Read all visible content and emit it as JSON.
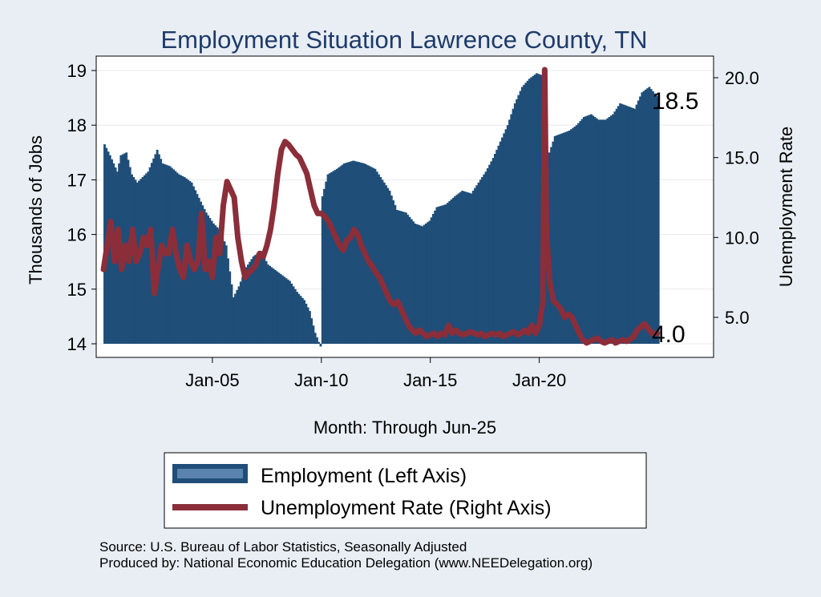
{
  "chart_data": {
    "type": "bar+line",
    "title": "Employment Situation Lawrence  County, TN",
    "xlabel": "Month: Through Jun-25",
    "ylabel_left": "Thousands of Jobs",
    "ylabel_right": "Unemployment Rate",
    "ylim_left": [
      14,
      19
    ],
    "ylim_right": [
      2.5,
      21
    ],
    "yticks_left": [
      "14",
      "15",
      "16",
      "17",
      "18",
      "19"
    ],
    "yticks_right": [
      "5.0",
      "10.0",
      "15.0",
      "20.0"
    ],
    "xticks": [
      "Jan-05",
      "Jan-10",
      "Jan-15",
      "Jan-20"
    ],
    "grid": true,
    "legend_position": "bottom",
    "series": [
      {
        "name": "Employment (Left Axis)",
        "kind": "bar",
        "axis": "left",
        "color": "#1f4e79",
        "points": [
          [
            "2000-01",
            17.65
          ],
          [
            "2000-04",
            17.45
          ],
          [
            "2000-06",
            17.3
          ],
          [
            "2000-08",
            17.15
          ],
          [
            "2000-10",
            17.45
          ],
          [
            "2001-01",
            17.5
          ],
          [
            "2001-04",
            17.1
          ],
          [
            "2001-07",
            16.95
          ],
          [
            "2001-10",
            17.05
          ],
          [
            "2002-01",
            17.15
          ],
          [
            "2002-06",
            17.55
          ],
          [
            "2002-09",
            17.3
          ],
          [
            "2003-01",
            17.25
          ],
          [
            "2003-06",
            17.1
          ],
          [
            "2003-09",
            17.05
          ],
          [
            "2004-01",
            16.95
          ],
          [
            "2004-06",
            16.6
          ],
          [
            "2004-09",
            16.4
          ],
          [
            "2005-01",
            16.2
          ],
          [
            "2005-04",
            16.1
          ],
          [
            "2005-08",
            15.8
          ],
          [
            "2005-12",
            14.85
          ],
          [
            "2006-03",
            15.05
          ],
          [
            "2006-07",
            15.4
          ],
          [
            "2006-11",
            15.6
          ],
          [
            "2007-03",
            15.7
          ],
          [
            "2007-07",
            15.45
          ],
          [
            "2007-11",
            15.35
          ],
          [
            "2008-03",
            15.25
          ],
          [
            "2008-07",
            15.15
          ],
          [
            "2008-11",
            14.95
          ],
          [
            "2009-03",
            14.8
          ],
          [
            "2009-06",
            14.6
          ],
          [
            "2009-09",
            14.2
          ],
          [
            "2009-12",
            13.95
          ],
          [
            "2010-01",
            16.7
          ],
          [
            "2010-04",
            17.1
          ],
          [
            "2010-09",
            17.2
          ],
          [
            "2011-01",
            17.3
          ],
          [
            "2011-06",
            17.35
          ],
          [
            "2011-12",
            17.3
          ],
          [
            "2012-06",
            17.2
          ],
          [
            "2012-10",
            17.0
          ],
          [
            "2013-02",
            16.8
          ],
          [
            "2013-06",
            16.45
          ],
          [
            "2013-11",
            16.4
          ],
          [
            "2014-04",
            16.2
          ],
          [
            "2014-08",
            16.15
          ],
          [
            "2014-12",
            16.25
          ],
          [
            "2015-04",
            16.5
          ],
          [
            "2015-09",
            16.55
          ],
          [
            "2016-02",
            16.7
          ],
          [
            "2016-06",
            16.8
          ],
          [
            "2016-11",
            16.75
          ],
          [
            "2017-03",
            16.95
          ],
          [
            "2017-07",
            17.15
          ],
          [
            "2017-11",
            17.4
          ],
          [
            "2018-03",
            17.7
          ],
          [
            "2018-07",
            18.0
          ],
          [
            "2018-11",
            18.4
          ],
          [
            "2019-03",
            18.7
          ],
          [
            "2019-07",
            18.85
          ],
          [
            "2019-11",
            18.95
          ],
          [
            "2020-03",
            18.9
          ],
          [
            "2020-05",
            17.4
          ],
          [
            "2020-09",
            17.8
          ],
          [
            "2021-01",
            17.85
          ],
          [
            "2021-05",
            17.9
          ],
          [
            "2021-09",
            18.0
          ],
          [
            "2022-01",
            18.15
          ],
          [
            "2022-05",
            18.2
          ],
          [
            "2022-09",
            18.1
          ],
          [
            "2023-01",
            18.1
          ],
          [
            "2023-05",
            18.2
          ],
          [
            "2023-09",
            18.4
          ],
          [
            "2024-01",
            18.35
          ],
          [
            "2024-05",
            18.3
          ],
          [
            "2024-09",
            18.6
          ],
          [
            "2025-01",
            18.7
          ],
          [
            "2025-06",
            18.5
          ]
        ]
      },
      {
        "name": "Unemployment Rate (Right Axis)",
        "kind": "line",
        "axis": "right",
        "color": "#8b2e3a",
        "points": [
          [
            "2000-01",
            8.0
          ],
          [
            "2000-03",
            9.5
          ],
          [
            "2000-05",
            11.0
          ],
          [
            "2000-07",
            8.5
          ],
          [
            "2000-09",
            10.5
          ],
          [
            "2000-11",
            8.0
          ],
          [
            "2001-01",
            9.5
          ],
          [
            "2001-03",
            8.5
          ],
          [
            "2001-05",
            10.5
          ],
          [
            "2001-07",
            8.5
          ],
          [
            "2001-09",
            9.0
          ],
          [
            "2001-11",
            10.0
          ],
          [
            "2002-01",
            9.5
          ],
          [
            "2002-03",
            10.5
          ],
          [
            "2002-05",
            6.5
          ],
          [
            "2002-07",
            8.0
          ],
          [
            "2002-09",
            9.5
          ],
          [
            "2002-11",
            9.0
          ],
          [
            "2003-01",
            9.0
          ],
          [
            "2003-03",
            10.5
          ],
          [
            "2003-05",
            9.0
          ],
          [
            "2003-07",
            8.0
          ],
          [
            "2003-09",
            7.5
          ],
          [
            "2003-11",
            9.5
          ],
          [
            "2004-01",
            8.5
          ],
          [
            "2004-03",
            8.0
          ],
          [
            "2004-05",
            8.5
          ],
          [
            "2004-07",
            11.5
          ],
          [
            "2004-09",
            8.0
          ],
          [
            "2004-11",
            8.5
          ],
          [
            "2005-01",
            7.5
          ],
          [
            "2005-03",
            10.0
          ],
          [
            "2005-05",
            9.0
          ],
          [
            "2005-07",
            12.0
          ],
          [
            "2005-09",
            13.5
          ],
          [
            "2005-11",
            13.0
          ],
          [
            "2006-01",
            12.5
          ],
          [
            "2006-03",
            10.0
          ],
          [
            "2006-05",
            8.5
          ],
          [
            "2006-07",
            7.5
          ],
          [
            "2006-09",
            7.8
          ],
          [
            "2006-11",
            8.0
          ],
          [
            "2007-01",
            8.3
          ],
          [
            "2007-03",
            9.0
          ],
          [
            "2007-05",
            8.8
          ],
          [
            "2007-07",
            9.5
          ],
          [
            "2007-09",
            10.5
          ],
          [
            "2007-11",
            12.0
          ],
          [
            "2008-01",
            14.0
          ],
          [
            "2008-03",
            15.5
          ],
          [
            "2008-05",
            16.0
          ],
          [
            "2008-07",
            15.8
          ],
          [
            "2008-09",
            15.5
          ],
          [
            "2008-11",
            15.2
          ],
          [
            "2009-01",
            15.0
          ],
          [
            "2009-03",
            14.5
          ],
          [
            "2009-05",
            14.0
          ],
          [
            "2009-07",
            13.0
          ],
          [
            "2009-09",
            12.0
          ],
          [
            "2009-11",
            11.5
          ],
          [
            "2010-01",
            11.5
          ],
          [
            "2010-03",
            11.3
          ],
          [
            "2010-05",
            11.0
          ],
          [
            "2010-07",
            10.5
          ],
          [
            "2010-09",
            10.0
          ],
          [
            "2010-11",
            9.5
          ],
          [
            "2011-01",
            9.2
          ],
          [
            "2011-03",
            9.8
          ],
          [
            "2011-05",
            10.0
          ],
          [
            "2011-07",
            10.5
          ],
          [
            "2011-09",
            10.2
          ],
          [
            "2011-11",
            9.5
          ],
          [
            "2012-01",
            9.0
          ],
          [
            "2012-03",
            8.5
          ],
          [
            "2012-05",
            8.2
          ],
          [
            "2012-07",
            7.8
          ],
          [
            "2012-09",
            7.5
          ],
          [
            "2012-11",
            7.0
          ],
          [
            "2013-01",
            6.5
          ],
          [
            "2013-03",
            6.0
          ],
          [
            "2013-05",
            5.8
          ],
          [
            "2013-07",
            6.0
          ],
          [
            "2013-09",
            5.5
          ],
          [
            "2013-11",
            5.0
          ],
          [
            "2014-01",
            4.5
          ],
          [
            "2014-03",
            4.2
          ],
          [
            "2014-05",
            4.0
          ],
          [
            "2014-07",
            4.2
          ],
          [
            "2014-09",
            4.0
          ],
          [
            "2014-11",
            3.8
          ],
          [
            "2015-01",
            3.9
          ],
          [
            "2015-03",
            4.0
          ],
          [
            "2015-05",
            3.8
          ],
          [
            "2015-07",
            4.0
          ],
          [
            "2015-09",
            3.9
          ],
          [
            "2015-11",
            4.5
          ],
          [
            "2016-01",
            4.0
          ],
          [
            "2016-03",
            4.2
          ],
          [
            "2016-05",
            4.0
          ],
          [
            "2016-07",
            3.9
          ],
          [
            "2016-09",
            4.0
          ],
          [
            "2016-11",
            4.1
          ],
          [
            "2017-01",
            4.0
          ],
          [
            "2017-03",
            3.9
          ],
          [
            "2017-05",
            4.0
          ],
          [
            "2017-07",
            3.8
          ],
          [
            "2017-09",
            3.9
          ],
          [
            "2017-11",
            4.0
          ],
          [
            "2018-01",
            3.9
          ],
          [
            "2018-03",
            4.0
          ],
          [
            "2018-05",
            3.8
          ],
          [
            "2018-07",
            3.9
          ],
          [
            "2018-09",
            4.0
          ],
          [
            "2018-11",
            4.1
          ],
          [
            "2019-01",
            3.9
          ],
          [
            "2019-03",
            4.0
          ],
          [
            "2019-05",
            4.2
          ],
          [
            "2019-07",
            4.0
          ],
          [
            "2019-09",
            4.5
          ],
          [
            "2019-11",
            4.0
          ],
          [
            "2020-01",
            4.5
          ],
          [
            "2020-03",
            6.0
          ],
          [
            "2020-04",
            20.5
          ],
          [
            "2020-05",
            10.0
          ],
          [
            "2020-07",
            7.0
          ],
          [
            "2020-09",
            6.0
          ],
          [
            "2020-11",
            5.8
          ],
          [
            "2021-01",
            5.5
          ],
          [
            "2021-03",
            5.0
          ],
          [
            "2021-05",
            5.2
          ],
          [
            "2021-07",
            5.0
          ],
          [
            "2021-09",
            4.5
          ],
          [
            "2021-11",
            4.0
          ],
          [
            "2022-01",
            3.6
          ],
          [
            "2022-03",
            3.4
          ],
          [
            "2022-05",
            3.5
          ],
          [
            "2022-07",
            3.6
          ],
          [
            "2022-09",
            3.7
          ],
          [
            "2022-11",
            3.5
          ],
          [
            "2023-01",
            3.4
          ],
          [
            "2023-03",
            3.5
          ],
          [
            "2023-05",
            3.6
          ],
          [
            "2023-07",
            3.4
          ],
          [
            "2023-09",
            3.5
          ],
          [
            "2023-11",
            3.6
          ],
          [
            "2024-01",
            3.5
          ],
          [
            "2024-03",
            3.6
          ],
          [
            "2024-05",
            3.8
          ],
          [
            "2024-07",
            4.2
          ],
          [
            "2024-09",
            4.4
          ],
          [
            "2024-11",
            4.6
          ],
          [
            "2025-01",
            4.3
          ],
          [
            "2025-03",
            4.0
          ],
          [
            "2025-06",
            4.0
          ]
        ]
      }
    ],
    "end_labels": {
      "employment": "18.5",
      "unemployment": "4.0"
    }
  },
  "footer": {
    "source": "Source: U.S. Bureau of Labor Statistics, Seasonally Adjusted",
    "producer": "Produced by: National Economic Education Delegation (www.NEEDelegation.org)"
  }
}
